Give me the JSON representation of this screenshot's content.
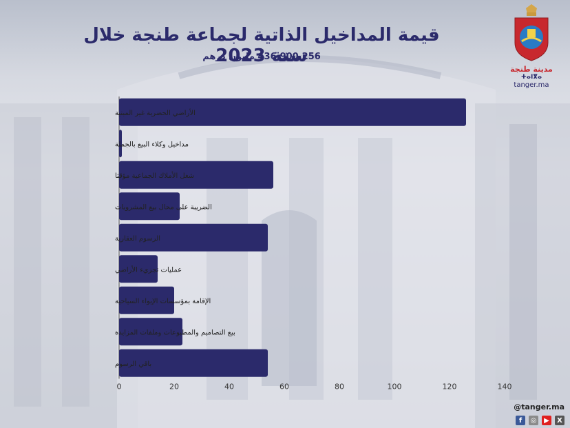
{
  "header": {
    "title": "قيمة المداخيل الذاتية لجماعة طنجة خلال سنة 2023",
    "subtitle": "436.900.256 مليون درهم"
  },
  "logo": {
    "city_arabic": "مدينة طنجة",
    "city_tifinagh": "ⵜⴰⵏⴳⴰ",
    "site": "tanger.ma"
  },
  "footer": {
    "handle": "@tanger.ma",
    "socials": [
      "facebook-icon",
      "instagram-icon",
      "youtube-icon",
      "x-icon"
    ]
  },
  "colors": {
    "bar": "#2b2a6b",
    "title": "#2b2a6b",
    "facebook": "#3b5998",
    "instagram": "#8a8a8a",
    "youtube": "#e02020",
    "x": "#555555"
  },
  "chart_data": {
    "type": "bar",
    "orientation": "horizontal",
    "categories": [
      "الأراضي الحضرية غير المبنية",
      "مداخيل وكلاء البيع بالجملة",
      "شغل الأملاك الجماعية مؤقتا",
      "الضريبة على محال بيع المشروبات",
      "الرسوم العقارية",
      "عمليات تجزيء الأراضي",
      "الإقامة بمؤسسات الإيواء السياحية",
      "بيع التصاميم والمطبوعات وملفات المزايدة",
      "باقي الرسوم"
    ],
    "values": [
      126,
      1,
      56,
      22,
      54,
      14,
      20,
      23,
      54
    ],
    "xlim": [
      0,
      140
    ],
    "xticks": [
      "0",
      "20",
      "40",
      "60",
      "80",
      "100",
      "120",
      "140"
    ],
    "grid": false,
    "legend": "none"
  }
}
